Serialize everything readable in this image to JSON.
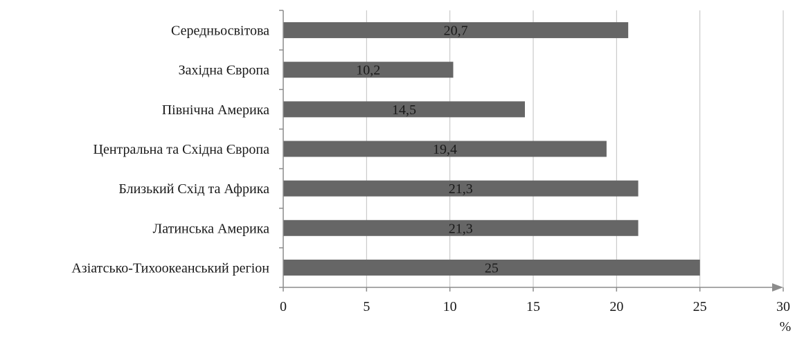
{
  "chart_data": {
    "type": "bar",
    "orientation": "horizontal",
    "categories": [
      "Середньосвітова",
      "Західна Європа",
      "Північна Америка",
      "Центральна та Східна Європа",
      "Близький Схід та Африка",
      "Латинська Америка",
      "Азіатсько-Тихоокеанський регіон"
    ],
    "values": [
      20.7,
      10.2,
      14.5,
      19.4,
      21.3,
      21.3,
      25
    ],
    "data_labels": [
      "20,7",
      "10,2",
      "14,5",
      "19,4",
      "21,3",
      "21,3",
      "25"
    ],
    "x_ticks": [
      0,
      5,
      10,
      15,
      20,
      25,
      30
    ],
    "x_tick_labels": [
      "0",
      "5",
      "10",
      "15",
      "20",
      "25",
      "30"
    ],
    "xlim": [
      0,
      30
    ],
    "x_unit": "%",
    "title": "",
    "xlabel": "",
    "ylabel": "",
    "grid": "vertical",
    "legend": "none",
    "bar_color": "#666666",
    "grid_color": "#bfbfbf",
    "axis_color": "#8c8c8c"
  }
}
